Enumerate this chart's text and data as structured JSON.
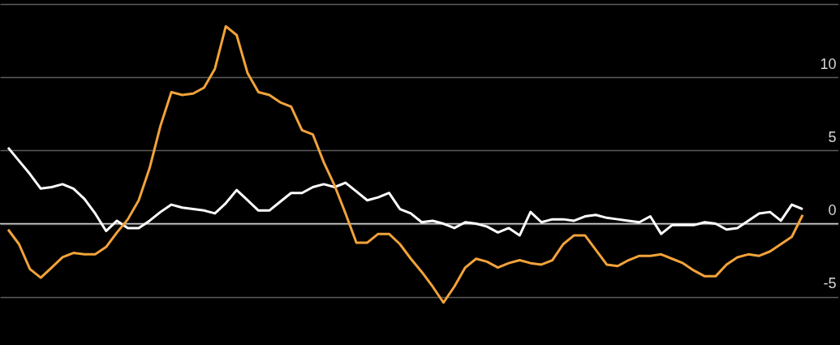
{
  "chart_data": {
    "type": "line",
    "categories": [
      null,
      null,
      null,
      null,
      null,
      null,
      null,
      null,
      null,
      null,
      null,
      null,
      null,
      null,
      null,
      null,
      null,
      null,
      null,
      null,
      null,
      null,
      null,
      null,
      null,
      null,
      null,
      null,
      null,
      null,
      null,
      null,
      null,
      null,
      null,
      null,
      null,
      null,
      null,
      null,
      null,
      null,
      null,
      null,
      null,
      null,
      null,
      null,
      null,
      null,
      null,
      null,
      null,
      null,
      null,
      null,
      null,
      null,
      null,
      null,
      null,
      null,
      null,
      null,
      null,
      null,
      null,
      null,
      null,
      null,
      null,
      null,
      null,
      null
    ],
    "series": [
      {
        "color": "#ffffff",
        "values": [
          5.2,
          4.3,
          3.4,
          2.4,
          2.5,
          2.7,
          2.4,
          1.7,
          0.7,
          -0.5,
          0.2,
          -0.3,
          -0.3,
          0.2,
          0.8,
          1.3,
          1.1,
          1.0,
          0.9,
          0.7,
          1.4,
          2.3,
          1.6,
          0.9,
          0.9,
          1.5,
          2.1,
          2.1,
          2.5,
          2.7,
          2.5,
          2.8,
          2.2,
          1.6,
          1.8,
          2.1,
          1.0,
          0.7,
          0.1,
          0.2,
          0.0,
          -0.3,
          0.1,
          0.0,
          -0.2,
          -0.6,
          -0.3,
          -0.8,
          0.8,
          0.1,
          0.3,
          0.3,
          0.2,
          0.5,
          0.6,
          0.4,
          0.3,
          0.2,
          0.1,
          0.5,
          -0.7,
          -0.1,
          -0.1,
          -0.1,
          0.1,
          0.0,
          -0.4,
          -0.3,
          0.2,
          0.7,
          0.8,
          0.2,
          1.3,
          1.0
        ]
      },
      {
        "color": "#f2a33a",
        "values": [
          -0.4,
          -1.4,
          -3.1,
          -3.7,
          -3.0,
          -2.3,
          -2.0,
          -2.1,
          -2.1,
          -1.6,
          -0.6,
          0.3,
          1.6,
          3.8,
          6.7,
          9.0,
          8.8,
          8.9,
          9.3,
          10.6,
          13.5,
          12.9,
          10.3,
          9.0,
          8.8,
          8.3,
          8.0,
          6.4,
          6.1,
          4.2,
          2.6,
          0.7,
          -1.3,
          -1.3,
          -0.7,
          -0.7,
          -1.4,
          -2.4,
          -3.3,
          -4.3,
          -5.4,
          -4.3,
          -3.0,
          -2.4,
          -2.6,
          -3.0,
          -2.7,
          -2.5,
          -2.7,
          -2.8,
          -2.5,
          -1.4,
          -0.8,
          -0.8,
          -1.8,
          -2.8,
          -2.9,
          -2.5,
          -2.2,
          -2.2,
          -2.1,
          -2.4,
          -2.7,
          -3.2,
          -3.6,
          -3.6,
          -2.8,
          -2.3,
          -2.1,
          -2.2,
          -1.9,
          -1.4,
          -0.9,
          0.6
        ]
      }
    ],
    "ylim": [
      -8.3,
      15.3
    ],
    "yticks": [
      -5,
      0,
      5,
      10,
      {
        "value": 15,
        "label": null
      }
    ],
    "grid": "y",
    "ref_lines": [
      {
        "axis": "y",
        "value": 0,
        "color": "#c8c8c8"
      }
    ]
  }
}
